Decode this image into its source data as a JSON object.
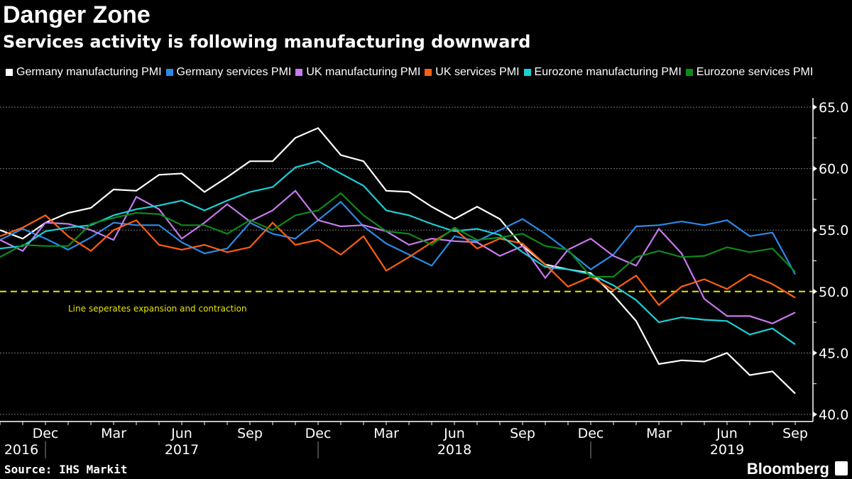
{
  "title": "Danger Zone",
  "subtitle": "Services activity is following manufacturing downward",
  "source": "Source: IHS Markit",
  "logo": "Bloomberg",
  "chart_data": {
    "type": "line",
    "x": [
      "2016-10",
      "2016-11",
      "2016-12",
      "2017-01",
      "2017-02",
      "2017-03",
      "2017-04",
      "2017-05",
      "2017-06",
      "2017-07",
      "2017-08",
      "2017-09",
      "2017-10",
      "2017-11",
      "2017-12",
      "2018-01",
      "2018-02",
      "2018-03",
      "2018-04",
      "2018-05",
      "2018-06",
      "2018-07",
      "2018-08",
      "2018-09",
      "2018-10",
      "2018-11",
      "2018-12",
      "2019-01",
      "2019-02",
      "2019-03",
      "2019-04",
      "2019-05",
      "2019-06",
      "2019-07",
      "2019-08",
      "2019-09"
    ],
    "x_tick_labels": [
      "Dec",
      "Mar",
      "Jun",
      "Sep",
      "Dec",
      "Mar",
      "Jun",
      "Sep",
      "Dec",
      "Mar",
      "Jun",
      "Sep"
    ],
    "x_tick_months": [
      "2016-12",
      "2017-03",
      "2017-06",
      "2017-09",
      "2017-12",
      "2018-03",
      "2018-06",
      "2018-09",
      "2018-12",
      "2019-03",
      "2019-06",
      "2019-09"
    ],
    "year_labels": [
      {
        "label": "2016",
        "month": "2016-10"
      },
      {
        "label": "2017",
        "month": "2017-06"
      },
      {
        "label": "2018",
        "month": "2018-06"
      },
      {
        "label": "2019",
        "month": "2019-06"
      }
    ],
    "ylim": [
      40,
      65
    ],
    "y_ticks": [
      "40.0",
      "45.0",
      "50.0",
      "55.0",
      "60.0",
      "65.0"
    ],
    "y_axis_position": "right",
    "grid": true,
    "legend_position": "top",
    "reference_line": {
      "value": 50,
      "label": "Line seperates expansion and contraction",
      "color": "#e6e600"
    },
    "series": [
      {
        "name": "Germany manufacturing PMI",
        "color": "#ffffff",
        "values": [
          55.0,
          54.3,
          55.6,
          56.4,
          56.8,
          58.3,
          58.2,
          59.5,
          59.6,
          58.1,
          59.3,
          60.6,
          60.6,
          62.5,
          63.3,
          61.1,
          60.6,
          58.2,
          58.1,
          56.9,
          55.9,
          56.9,
          55.9,
          53.7,
          52.2,
          51.8,
          51.5,
          49.7,
          47.6,
          44.1,
          44.4,
          44.3,
          45.0,
          43.2,
          43.5,
          41.7
        ]
      },
      {
        "name": "Germany services PMI",
        "color": "#2a8ae8",
        "values": [
          54.2,
          55.1,
          54.3,
          53.4,
          54.4,
          55.6,
          55.4,
          55.4,
          54.0,
          53.1,
          53.5,
          55.6,
          54.7,
          54.3,
          55.8,
          57.3,
          55.3,
          53.9,
          53.0,
          52.1,
          54.5,
          54.1,
          55.0,
          55.9,
          54.7,
          53.3,
          51.8,
          53.0,
          55.3,
          55.4,
          55.7,
          55.4,
          55.8,
          54.5,
          54.8,
          51.4
        ]
      },
      {
        "name": "UK manufacturing PMI",
        "color": "#c879f0",
        "values": [
          54.2,
          53.3,
          55.6,
          55.5,
          55.0,
          54.2,
          57.7,
          56.7,
          54.3,
          55.6,
          57.1,
          55.7,
          56.6,
          58.2,
          55.8,
          55.3,
          55.4,
          54.9,
          53.8,
          54.3,
          54.1,
          54.0,
          52.9,
          53.7,
          51.1,
          53.4,
          54.3,
          52.9,
          52.1,
          55.1,
          53.1,
          49.4,
          48.0,
          48.0,
          47.4,
          48.3
        ]
      },
      {
        "name": "UK services PMI",
        "color": "#ff5f0f",
        "values": [
          54.5,
          55.2,
          56.2,
          54.5,
          53.3,
          55.0,
          55.8,
          53.8,
          53.4,
          53.8,
          53.2,
          53.6,
          55.6,
          53.8,
          54.2,
          53.0,
          54.5,
          51.7,
          52.8,
          54.0,
          55.1,
          53.5,
          54.3,
          53.9,
          52.2,
          50.4,
          51.2,
          50.1,
          51.3,
          48.9,
          50.4,
          51.0,
          50.2,
          51.4,
          50.6,
          49.5
        ]
      },
      {
        "name": "Eurozone manufacturing PMI",
        "color": "#1ccfd6",
        "values": [
          53.5,
          53.7,
          54.9,
          55.2,
          55.4,
          56.2,
          56.7,
          57.0,
          57.4,
          56.6,
          57.4,
          58.1,
          58.5,
          60.1,
          60.6,
          59.6,
          58.6,
          56.6,
          56.2,
          55.5,
          54.9,
          55.1,
          54.6,
          53.2,
          52.0,
          51.8,
          51.4,
          50.5,
          49.3,
          47.5,
          47.9,
          47.7,
          47.6,
          46.5,
          47.0,
          45.7
        ]
      },
      {
        "name": "Eurozone services PMI",
        "color": "#0c8a1a",
        "values": [
          52.8,
          53.8,
          53.7,
          53.7,
          55.5,
          56.0,
          56.4,
          56.3,
          55.4,
          55.4,
          54.7,
          55.8,
          55.0,
          56.2,
          56.6,
          58.0,
          56.2,
          54.9,
          54.7,
          53.8,
          55.2,
          54.2,
          54.4,
          54.7,
          53.7,
          53.4,
          51.2,
          51.2,
          52.8,
          53.3,
          52.8,
          52.9,
          53.6,
          53.2,
          53.5,
          51.6
        ]
      }
    ]
  }
}
